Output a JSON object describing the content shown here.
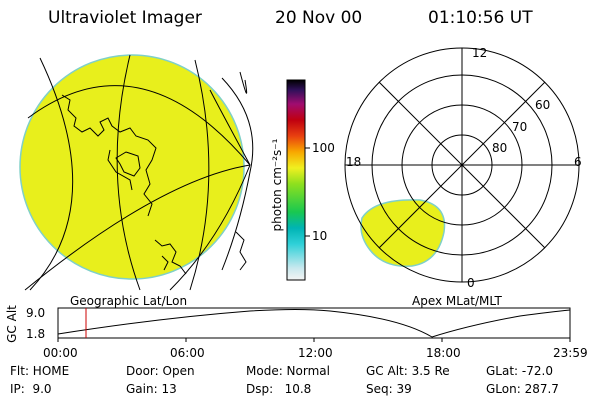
{
  "header": {
    "instrument": "Ultraviolet Imager",
    "date": "20 Nov 00",
    "time": "01:10:56 UT"
  },
  "colors": {
    "image_fill": "#e8ef1c",
    "image_edge": "#7fd0c8",
    "line": "#000000",
    "marker": "#cc0000"
  },
  "colorbar": {
    "label": "photon cm⁻²s⁻¹",
    "tick_100": "100",
    "tick_10": "10",
    "scale": "log"
  },
  "left_panel": {
    "caption": "Geographic Lat/Lon"
  },
  "right_panel": {
    "caption": "Apex MLat/MLT",
    "mlt_12": "12",
    "mlt_18": "18",
    "mlt_6": "6",
    "mlt_0": "0",
    "lat_60": "60",
    "lat_70": "70",
    "lat_80": "80"
  },
  "altitude_plot": {
    "ylabel": "GC Alt",
    "y_top": "9.0",
    "y_bottom": "1.8",
    "x_ticks": [
      "00:00",
      "06:00",
      "12:00",
      "18:00",
      "23:59"
    ]
  },
  "info": {
    "flt": "Flt: HOME",
    "ip": "IP:  9.0",
    "door": "Door: Open",
    "gain": "Gain: 13",
    "mode": "Mode: Normal",
    "dsp": "Dsp:   10.8",
    "gc_alt": "GC Alt: 3.5 Re",
    "seq": "Seq: 39",
    "glat": "GLat: -72.0",
    "glon": "GLon: 287.7"
  }
}
